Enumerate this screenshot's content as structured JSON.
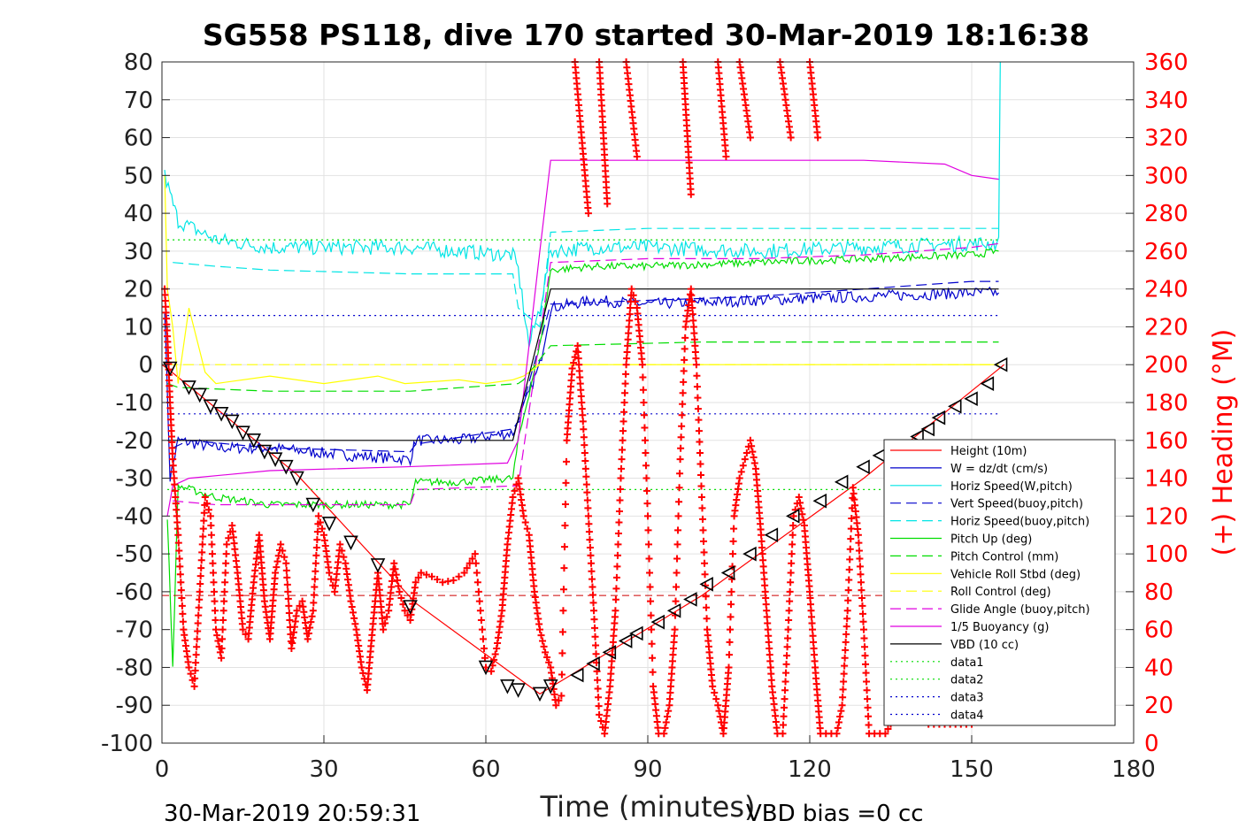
{
  "chart_data": {
    "type": "line",
    "title": "SG558 PS118, dive 170 started 30-Mar-2019 18:16:38",
    "xlabel": "Time (minutes)",
    "ylabel": "",
    "ylabel_right": "(+) Heading (°M)",
    "footer_left": "30-Mar-2019 20:59:31",
    "footer_right": "VBD bias =0 cc",
    "xlim": [
      0,
      180
    ],
    "ylim": [
      -100,
      80
    ],
    "ylim_right": [
      0,
      360
    ],
    "xticks": [
      "0",
      "30",
      "60",
      "90",
      "120",
      "150",
      "180"
    ],
    "yticks": [
      "80",
      "70",
      "60",
      "50",
      "40",
      "30",
      "20",
      "10",
      "0",
      "-10",
      "-20",
      "-30",
      "-40",
      "-50",
      "-60",
      "-70",
      "-80",
      "-90",
      "-100"
    ],
    "yticks_right": [
      "360",
      "340",
      "320",
      "300",
      "280",
      "260",
      "240",
      "220",
      "200",
      "180",
      "160",
      "140",
      "120",
      "100",
      "80",
      "60",
      "40",
      "20",
      "0"
    ],
    "grid": true,
    "legend_position": "lower-right",
    "legend": [
      {
        "label": "Height (10m)",
        "color": "#ff0000",
        "style": "solid"
      },
      {
        "label": "W = dz/dt (cm/s)",
        "color": "#0000cc",
        "style": "solid"
      },
      {
        "label": "Horiz Speed(W,pitch)",
        "color": "#00e5e5",
        "style": "solid"
      },
      {
        "label": "Vert Speed(buoy,pitch)",
        "color": "#0000cc",
        "style": "dashed"
      },
      {
        "label": "Horiz Speed(buoy,pitch)",
        "color": "#00e5e5",
        "style": "dashed"
      },
      {
        "label": "Pitch Up (deg)",
        "color": "#00dd00",
        "style": "solid"
      },
      {
        "label": "Pitch Control (mm)",
        "color": "#00dd00",
        "style": "dashed"
      },
      {
        "label": "Vehicle Roll Stbd (deg)",
        "color": "#ffff00",
        "style": "solid"
      },
      {
        "label": "Roll Control (deg)",
        "color": "#ffff00",
        "style": "dashed"
      },
      {
        "label": "Glide Angle (buoy,pitch)",
        "color": "#e000e0",
        "style": "dashed"
      },
      {
        "label": "1/5 Buoyancy (g)",
        "color": "#e000e0",
        "style": "solid"
      },
      {
        "label": "VBD (10 cc)",
        "color": "#000000",
        "style": "solid"
      },
      {
        "label": "data1",
        "color": "#00dd00",
        "style": "dotted"
      },
      {
        "label": "data2",
        "color": "#00dd00",
        "style": "dotted"
      },
      {
        "label": "data3",
        "color": "#0000cc",
        "style": "dotted"
      },
      {
        "label": "data4",
        "color": "#0000cc",
        "style": "dotted"
      }
    ],
    "series": [
      {
        "name": "Height (10m)",
        "color": "#ff0000",
        "style": "solid",
        "x": [
          0,
          1,
          25,
          47,
          70,
          100,
          130,
          156
        ],
        "y": [
          0,
          -1,
          -29,
          -63,
          -87,
          -61,
          -30,
          0
        ]
      },
      {
        "name": "W = dz/dt (cm/s)",
        "color": "#0000cc",
        "style": "solid",
        "noise": 1.5,
        "x": [
          0.5,
          1.5,
          3,
          10,
          20,
          35,
          46,
          47,
          55,
          65,
          66,
          70,
          72,
          80,
          90,
          110,
          130,
          150,
          155
        ],
        "y": [
          15,
          -30,
          -20,
          -22,
          -22,
          -24,
          -25,
          -20,
          -20,
          -18,
          -15,
          0,
          15,
          17,
          16,
          17,
          18,
          19,
          19
        ]
      },
      {
        "name": "Horiz Speed(W,pitch)",
        "color": "#00e5e5",
        "style": "solid",
        "noise": 2,
        "x": [
          0.5,
          1.5,
          3,
          10,
          20,
          35,
          46,
          55,
          65,
          66,
          68,
          70,
          72,
          80,
          90,
          110,
          130,
          150,
          155,
          155.3
        ],
        "y": [
          50,
          45,
          38,
          33,
          31,
          31,
          31,
          30,
          29,
          25,
          5,
          15,
          30,
          31,
          31,
          30,
          31,
          32,
          32,
          80
        ]
      },
      {
        "name": "Vert Speed(buoy,pitch)",
        "color": "#0000cc",
        "style": "dashed",
        "x": [
          2,
          5,
          20,
          46,
          47,
          65,
          66,
          72,
          90,
          110,
          130,
          150,
          155
        ],
        "y": [
          -22,
          -20,
          -22,
          -23,
          -21,
          -17,
          -15,
          16,
          17,
          18,
          20,
          22,
          22
        ]
      },
      {
        "name": "Horiz Speed(buoy,pitch)",
        "color": "#00e5e5",
        "style": "dashed",
        "x": [
          2,
          10,
          20,
          46,
          65,
          66,
          70,
          72,
          90,
          110,
          130,
          150,
          155
        ],
        "y": [
          27,
          26,
          25,
          24,
          24,
          15,
          10,
          35,
          36,
          36,
          36,
          36,
          36
        ]
      },
      {
        "name": "Pitch Up (deg)",
        "color": "#00dd00",
        "style": "solid",
        "noise": 1,
        "x": [
          1,
          2,
          3,
          10,
          20,
          35,
          46,
          47,
          55,
          65,
          66,
          70,
          72,
          80,
          90,
          110,
          130,
          150,
          155
        ],
        "y": [
          -40,
          -80,
          -32,
          -35,
          -37,
          -37,
          -37,
          -31,
          -31,
          -30,
          -20,
          5,
          25,
          26,
          26,
          27,
          28,
          29,
          30
        ]
      },
      {
        "name": "Pitch Control (mm)",
        "color": "#00dd00",
        "style": "dashed",
        "x": [
          1,
          3,
          20,
          46,
          66,
          67,
          72,
          100,
          130,
          155
        ],
        "y": [
          -5,
          -6,
          -7,
          -7,
          -5,
          -4,
          5,
          6,
          6,
          6
        ]
      },
      {
        "name": "Vehicle Roll Stbd (deg)",
        "color": "#ffff00",
        "style": "solid",
        "x": [
          0.5,
          1,
          2,
          3,
          5,
          8,
          10,
          20,
          30,
          40,
          45,
          55,
          60,
          65,
          67,
          70,
          72,
          80,
          90,
          100,
          110,
          120,
          130,
          140,
          150,
          155
        ],
        "y": [
          50,
          20,
          10,
          -5,
          15,
          -2,
          -5,
          -3,
          -5,
          -3,
          -5,
          -4,
          -5,
          -4,
          -3,
          0,
          0,
          0,
          0,
          0,
          0,
          0,
          0,
          0,
          0,
          0
        ]
      },
      {
        "name": "Roll Control (deg)",
        "color": "#ffff00",
        "style": "dashed",
        "x": [
          1,
          155
        ],
        "y": [
          0,
          0
        ]
      },
      {
        "name": "Glide Angle (buoy,pitch)",
        "color": "#e000e0",
        "style": "dashed",
        "x": [
          2,
          10,
          20,
          46,
          47,
          66,
          72,
          90,
          110,
          130,
          150,
          155
        ],
        "y": [
          -36,
          -37,
          -37,
          -37,
          -33,
          -32,
          27,
          28,
          28,
          29,
          31,
          32
        ]
      },
      {
        "name": "1/5 Buoyancy (g)",
        "color": "#e000e0",
        "style": "solid",
        "x": [
          1,
          2,
          5,
          20,
          45,
          64,
          66,
          70,
          72,
          100,
          130,
          145,
          150,
          155
        ],
        "y": [
          -40,
          -32,
          -30,
          -28,
          -27,
          -26,
          -20,
          30,
          54,
          54,
          54,
          53,
          50,
          49
        ]
      },
      {
        "name": "VBD (10 cc)",
        "color": "#000000",
        "style": "solid",
        "x": [
          1,
          2,
          64,
          65,
          72,
          155
        ],
        "y": [
          -20,
          -20,
          -20,
          -20,
          20,
          20
        ]
      },
      {
        "name": "data1",
        "color": "#00dd00",
        "style": "dotted",
        "x": [
          1,
          155
        ],
        "y": [
          -33,
          -33
        ]
      },
      {
        "name": "data2",
        "color": "#00dd00",
        "style": "dotted",
        "x": [
          1,
          155
        ],
        "y": [
          33,
          33
        ]
      },
      {
        "name": "data3",
        "color": "#0000cc",
        "style": "dotted",
        "x": [
          1,
          155
        ],
        "y": [
          13,
          13
        ]
      },
      {
        "name": "data4",
        "color": "#0000cc",
        "style": "dotted",
        "x": [
          1,
          155
        ],
        "y": [
          -13,
          -13
        ]
      }
    ],
    "reference_lines": [
      {
        "color": "#cc0000",
        "style": "dashed",
        "y": -61,
        "x": [
          0,
          155
        ]
      }
    ],
    "triangle_markers": {
      "color": "#000000",
      "x": [
        1.5,
        5,
        7,
        9,
        11,
        13,
        15,
        17,
        19,
        21,
        23,
        25,
        28,
        31,
        35,
        40,
        46,
        60,
        64,
        66,
        70,
        72,
        77,
        80,
        83,
        86,
        88,
        92,
        95,
        98,
        101,
        105,
        109,
        113,
        117,
        122,
        126,
        130,
        133,
        136,
        140,
        142,
        144,
        147,
        150,
        153,
        155.5
      ],
      "y": [
        -1,
        -6,
        -8,
        -11,
        -13,
        -15,
        -18,
        -20,
        -23,
        -25,
        -27,
        -30,
        -37,
        -42,
        -47,
        -53,
        -64,
        -80,
        -85,
        -86,
        -87,
        -85,
        -82,
        -79,
        -76,
        -73,
        -71,
        -68,
        -65,
        -62,
        -58,
        -55,
        -50,
        -45,
        -40,
        -36,
        -31,
        -27,
        -24,
        -22,
        -19,
        -17,
        -14,
        -11,
        -9,
        -5,
        0
      ]
    },
    "heading": {
      "name": "(+) Heading (°M)",
      "color": "#ff0000",
      "marker": "+",
      "x": [
        0.5,
        1,
        1.5,
        2,
        3,
        4,
        5,
        6,
        7,
        8,
        9,
        10,
        11,
        12,
        13,
        14,
        15,
        16,
        17,
        18,
        19,
        20,
        21,
        22,
        23,
        24,
        25,
        26,
        27,
        28,
        29,
        30,
        31,
        32,
        33,
        34,
        35,
        36,
        37,
        38,
        39,
        40,
        41,
        42,
        43,
        44,
        45,
        46,
        47,
        48,
        50,
        52,
        54,
        56,
        58,
        60,
        61,
        62,
        63,
        64,
        65,
        66,
        67,
        68,
        69,
        70,
        71,
        72,
        73,
        74,
        75,
        76,
        77,
        78,
        79,
        80,
        81,
        82,
        83,
        84,
        85,
        86,
        87,
        88,
        89,
        90,
        91,
        92,
        93,
        94,
        95,
        96,
        97,
        98,
        99,
        100,
        101,
        102,
        103,
        104,
        105,
        106,
        107,
        108,
        109,
        110,
        111,
        112,
        113,
        114,
        115,
        116,
        117,
        118,
        119,
        120,
        121,
        122,
        123,
        124,
        125,
        126,
        127,
        128,
        129,
        130,
        131,
        132,
        133,
        134,
        135,
        136,
        137,
        138,
        139,
        140,
        141,
        142,
        143,
        144,
        145,
        146,
        147,
        148,
        149,
        150
      ],
      "y": [
        240,
        215,
        180,
        150,
        110,
        60,
        40,
        30,
        80,
        130,
        120,
        60,
        45,
        105,
        115,
        90,
        60,
        55,
        85,
        110,
        75,
        55,
        90,
        105,
        95,
        50,
        70,
        75,
        55,
        70,
        120,
        110,
        90,
        80,
        105,
        95,
        75,
        60,
        40,
        28,
        60,
        90,
        60,
        70,
        95,
        80,
        70,
        65,
        85,
        90,
        88,
        85,
        86,
        90,
        100,
        40,
        38,
        50,
        70,
        105,
        130,
        140,
        120,
        110,
        80,
        60,
        48,
        40,
        20,
        25,
        160,
        198,
        210,
        170,
        120,
        70,
        15,
        5,
        30,
        70,
        140,
        200,
        240,
        230,
        200,
        120,
        30,
        5,
        5,
        20,
        60,
        150,
        220,
        240,
        200,
        130,
        60,
        30,
        20,
        5,
        40,
        120,
        140,
        150,
        160,
        145,
        110,
        70,
        30,
        5,
        5,
        60,
        120,
        130,
        115,
        80,
        40,
        5,
        5,
        5,
        5,
        20,
        70,
        135,
        110,
        60,
        5,
        5,
        5,
        5,
        10,
        30,
        50,
        110,
        90,
        40,
        20,
        10,
        10,
        10,
        10,
        10,
        10,
        10,
        10,
        10
      ],
      "upper_clusters": [
        {
          "x": [
            76.5,
            79
          ],
          "y": [
            360,
            280
          ]
        },
        {
          "x": [
            81,
            82.5
          ],
          "y": [
            360,
            285
          ]
        },
        {
          "x": [
            86,
            88
          ],
          "y": [
            360,
            310
          ]
        },
        {
          "x": [
            96.5,
            98
          ],
          "y": [
            360,
            290
          ]
        },
        {
          "x": [
            103,
            104.5
          ],
          "y": [
            360,
            310
          ]
        },
        {
          "x": [
            107,
            109
          ],
          "y": [
            360,
            320
          ]
        },
        {
          "x": [
            114.5,
            116.5
          ],
          "y": [
            360,
            320
          ]
        },
        {
          "x": [
            120,
            121.5
          ],
          "y": [
            360,
            320
          ]
        }
      ]
    }
  }
}
